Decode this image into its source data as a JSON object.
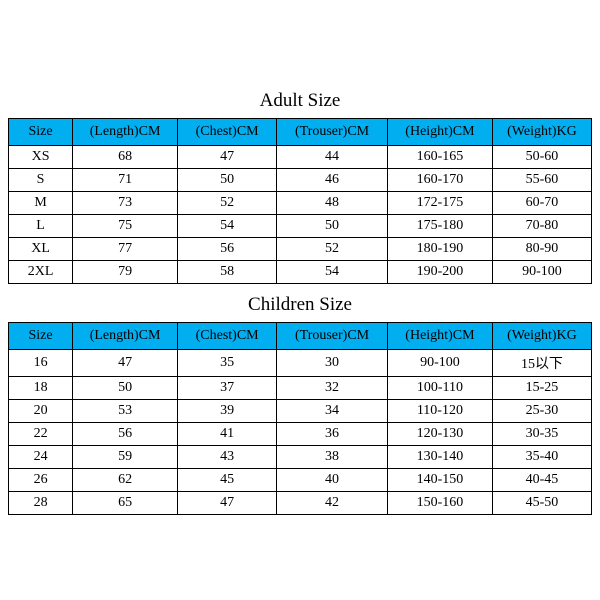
{
  "header_color": "#01aef0",
  "border_color": "#000000",
  "background_color": "#ffffff",
  "font_family": "Times New Roman",
  "adult": {
    "title": "Adult Size",
    "columns": [
      "Size",
      "(Length)CM",
      "(Chest)CM",
      "(Trouser)CM",
      "(Height)CM",
      "(Weight)KG"
    ],
    "rows": [
      [
        "XS",
        "68",
        "47",
        "44",
        "160-165",
        "50-60"
      ],
      [
        "S",
        "71",
        "50",
        "46",
        "160-170",
        "55-60"
      ],
      [
        "M",
        "73",
        "52",
        "48",
        "172-175",
        "60-70"
      ],
      [
        "L",
        "75",
        "54",
        "50",
        "175-180",
        "70-80"
      ],
      [
        "XL",
        "77",
        "56",
        "52",
        "180-190",
        "80-90"
      ],
      [
        "2XL",
        "79",
        "58",
        "54",
        "190-200",
        "90-100"
      ]
    ]
  },
  "children": {
    "title": "Children Size",
    "columns": [
      "Size",
      "(Length)CM",
      "(Chest)CM",
      "(Trouser)CM",
      "(Height)CM",
      "(Weight)KG"
    ],
    "rows": [
      [
        "16",
        "47",
        "35",
        "30",
        "90-100",
        "15以下"
      ],
      [
        "18",
        "50",
        "37",
        "32",
        "100-110",
        "15-25"
      ],
      [
        "20",
        "53",
        "39",
        "34",
        "110-120",
        "25-30"
      ],
      [
        "22",
        "56",
        "41",
        "36",
        "120-130",
        "30-35"
      ],
      [
        "24",
        "59",
        "43",
        "38",
        "130-140",
        "35-40"
      ],
      [
        "26",
        "62",
        "45",
        "40",
        "140-150",
        "40-45"
      ],
      [
        "28",
        "65",
        "47",
        "42",
        "150-160",
        "45-50"
      ]
    ]
  }
}
